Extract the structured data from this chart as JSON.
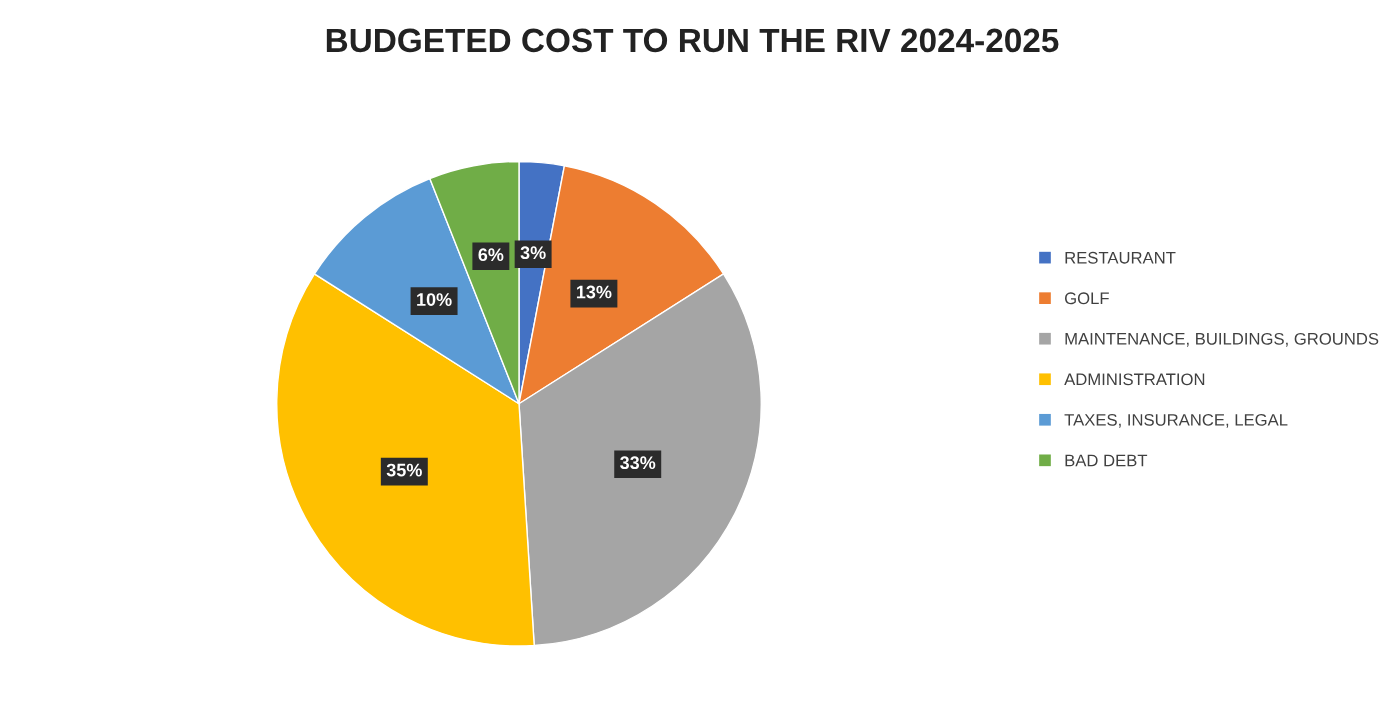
{
  "chart_data": {
    "type": "pie",
    "title": "BUDGETED COST TO RUN THE RIV 2024-2025",
    "categories": [
      "RESTAURANT",
      "GOLF",
      "MAINTENANCE, BUILDINGS, GROUNDS",
      "ADMINISTRATION",
      "TAXES, INSURANCE, LEGAL",
      "BAD DEBT"
    ],
    "values": [
      3,
      13,
      33,
      35,
      10,
      6
    ],
    "colors": [
      "#4472c4",
      "#ed7d31",
      "#a5a5a5",
      "#ffc000",
      "#5b9bd5",
      "#70ad47"
    ],
    "value_labels": [
      "3%",
      "13%",
      "33%",
      "35%",
      "10%",
      "6%"
    ],
    "legend": "right"
  }
}
